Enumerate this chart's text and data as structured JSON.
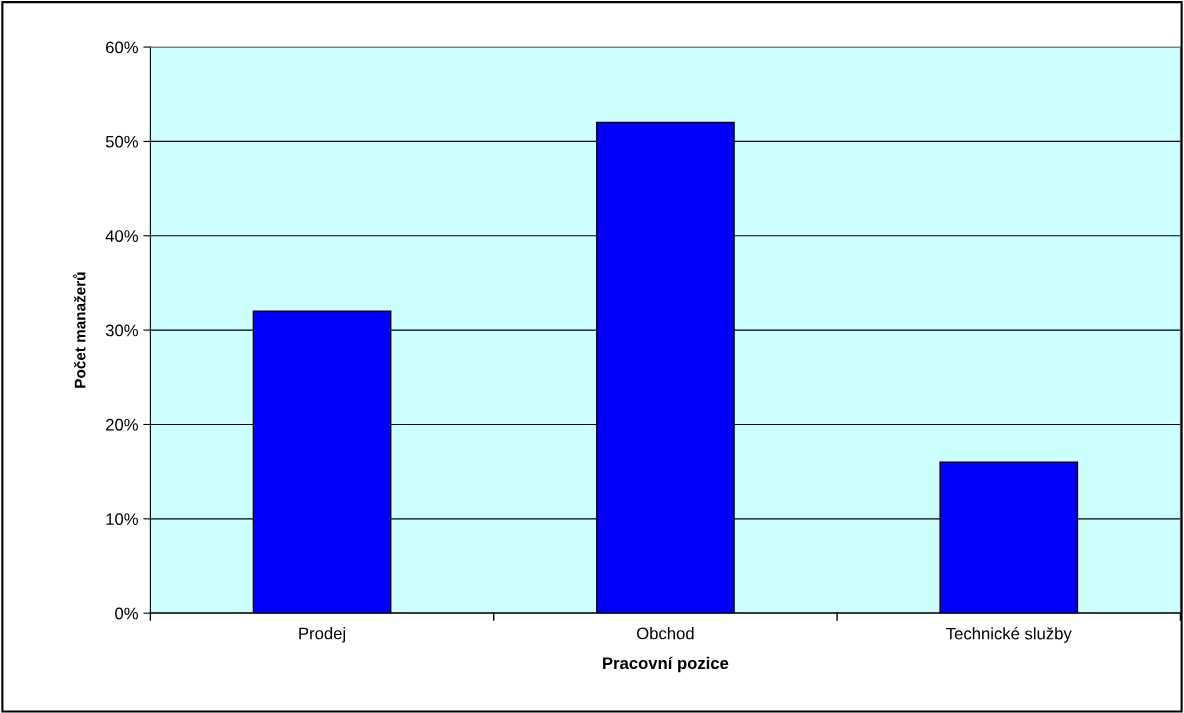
{
  "chart_data": {
    "type": "bar",
    "xlabel": "Pracovní pozice",
    "ylabel": "Počet manažerů",
    "categories": [
      "Prodej",
      "Obchod",
      "Technické služby"
    ],
    "values": [
      32,
      52,
      16
    ],
    "color": "#0000ff",
    "ylim": [
      0,
      60
    ],
    "yticks": [
      {
        "value": 0,
        "label": "0%"
      },
      {
        "value": 10,
        "label": "10%"
      },
      {
        "value": 20,
        "label": "20%"
      },
      {
        "value": 30,
        "label": "30%"
      },
      {
        "value": 40,
        "label": "40%"
      },
      {
        "value": 50,
        "label": "50%"
      },
      {
        "value": 60,
        "label": "60%"
      }
    ],
    "grid": "y",
    "legend": false
  }
}
